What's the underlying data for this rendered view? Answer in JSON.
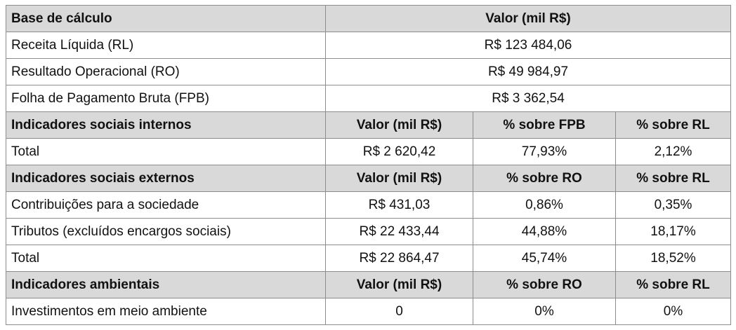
{
  "base": {
    "header": {
      "label": "Base de cálculo",
      "value": "Valor (mil R$)"
    },
    "rows": [
      {
        "label": "Receita Líquida (RL)",
        "value": "R$ 123 484,06"
      },
      {
        "label": "Resultado Operacional (RO)",
        "value": "R$ 49 984,97"
      },
      {
        "label": "Folha de Pagamento Bruta (FPB)",
        "value": "R$ 3 362,54"
      }
    ]
  },
  "internos": {
    "header": {
      "label": "Indicadores sociais internos",
      "value": "Valor (mil R$)",
      "pct1": "% sobre FPB",
      "pct2": "% sobre RL"
    },
    "rows": [
      {
        "label": "Total",
        "value": "R$ 2 620,42",
        "pct1": "77,93%",
        "pct2": "2,12%"
      }
    ]
  },
  "externos": {
    "header": {
      "label": "Indicadores sociais externos",
      "value": "Valor (mil R$)",
      "pct1": "% sobre RO",
      "pct2": "% sobre RL"
    },
    "rows": [
      {
        "label": "Contribuições para a sociedade",
        "value": "R$ 431,03",
        "pct1": "0,86%",
        "pct2": "0,35%"
      },
      {
        "label": "Tributos (excluídos encargos sociais)",
        "value": "R$ 22 433,44",
        "pct1": "44,88%",
        "pct2": "18,17%"
      },
      {
        "label": "Total",
        "value": "R$ 22 864,47",
        "pct1": "45,74%",
        "pct2": "18,52%"
      }
    ]
  },
  "ambientais": {
    "header": {
      "label": "Indicadores ambientais",
      "value": "Valor (mil R$)",
      "pct1": "% sobre RO",
      "pct2": "% sobre RL"
    },
    "rows": [
      {
        "label": "Investimentos em meio ambiente",
        "value": "0",
        "pct1": "0%",
        "pct2": "0%"
      }
    ]
  }
}
